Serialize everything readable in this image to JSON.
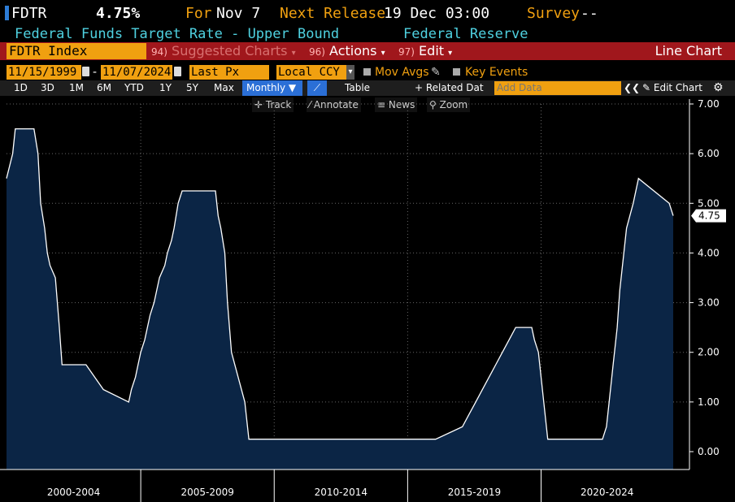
{
  "header": {
    "ticker": "FDTR",
    "value": "4.75%",
    "for_label": "For",
    "for_date": "Nov 7",
    "next_release_label": "Next Release",
    "next_release": "19 Dec 03:00",
    "survey_label": "Survey",
    "survey_value": "--",
    "description": "Federal Funds Target Rate - Upper Bound",
    "source": "Federal Reserve"
  },
  "toolbar": {
    "security": "FDTR Index",
    "suggested_num": "94)",
    "suggested": "Suggested Charts",
    "actions_num": "96)",
    "actions": "Actions",
    "edit_num": "97)",
    "edit": "Edit",
    "chart_type": "Line Chart"
  },
  "range": {
    "start": "11/15/1999",
    "end": "11/07/2024",
    "field": "Last Px",
    "currency": "Local CCY",
    "mov_avgs": "Mov Avgs",
    "key_events": "Key Events"
  },
  "periods": [
    "1D",
    "3D",
    "1M",
    "6M",
    "YTD",
    "1Y",
    "5Y",
    "Max"
  ],
  "frequency": "Monthly",
  "table_label": "Table",
  "related_data": "+ Related Dat",
  "add_data_placeholder": "Add Data",
  "edit_chart": "Edit Chart",
  "tools": {
    "track": "Track",
    "annotate": "Annotate",
    "news": "News",
    "zoom": "Zoom"
  },
  "colors": {
    "accent": "#f0a010",
    "toolbar_red": "#a0171c",
    "cyan": "#4fd1e0",
    "area_fill": "#0b2545",
    "line": "#ffffff"
  },
  "chart_data": {
    "type": "area",
    "title": "",
    "xlabel": "",
    "ylabel": "",
    "ylim": [
      0,
      7
    ],
    "yticks": [
      "7.00",
      "6.00",
      "5.00",
      "4.00",
      "3.00",
      "2.00",
      "1.00",
      "0.00"
    ],
    "x_period_labels": [
      "2000-2004",
      "2005-2009",
      "2010-2014",
      "2015-2019",
      "2020-2024"
    ],
    "last_value_label": "4.75",
    "grid": true,
    "x": [
      1999.87,
      2000.1,
      2000.2,
      2000.38,
      2000.9,
      2001.05,
      2001.15,
      2001.3,
      2001.4,
      2001.5,
      2001.7,
      2001.85,
      2001.95,
      2002.85,
      2003.5,
      2004.45,
      2004.55,
      2004.7,
      2004.8,
      2004.9,
      2005.05,
      2005.15,
      2005.25,
      2005.4,
      2005.5,
      2005.6,
      2005.8,
      2005.9,
      2006.05,
      2006.15,
      2006.3,
      2006.45,
      2007.7,
      2007.8,
      2007.9,
      2008.05,
      2008.15,
      2008.3,
      2008.8,
      2008.95,
      2015.95,
      2016.95,
      2017.2,
      2017.45,
      2017.7,
      2017.95,
      2018.2,
      2018.45,
      2018.7,
      2018.95,
      2019.55,
      2019.65,
      2019.8,
      2020.15,
      2022.2,
      2022.35,
      2022.45,
      2022.6,
      2022.75,
      2022.85,
      2023.1,
      2023.35,
      2023.55,
      2024.7,
      2024.85
    ],
    "y": [
      5.5,
      6.0,
      6.5,
      6.5,
      6.5,
      6.0,
      5.0,
      4.5,
      4.0,
      3.75,
      3.5,
      2.5,
      1.75,
      1.75,
      1.25,
      1.0,
      1.25,
      1.5,
      1.75,
      2.0,
      2.25,
      2.5,
      2.75,
      3.0,
      3.25,
      3.5,
      3.75,
      4.0,
      4.25,
      4.5,
      5.0,
      5.25,
      5.25,
      4.75,
      4.5,
      4.0,
      3.0,
      2.0,
      1.0,
      0.25,
      0.25,
      0.5,
      0.75,
      1.0,
      1.25,
      1.5,
      1.75,
      2.0,
      2.25,
      2.5,
      2.5,
      2.25,
      2.0,
      0.25,
      0.25,
      0.5,
      1.0,
      1.75,
      2.5,
      3.25,
      4.5,
      5.0,
      5.5,
      5.0,
      4.75
    ]
  }
}
